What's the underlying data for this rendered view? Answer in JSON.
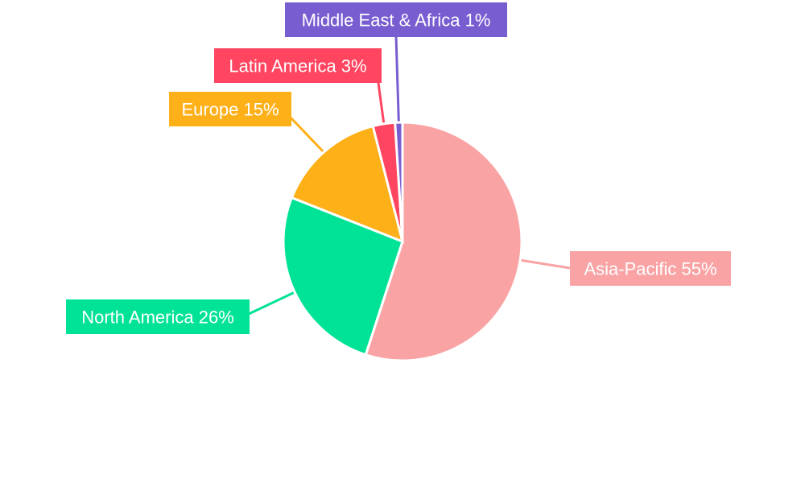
{
  "chart_data": {
    "type": "pie",
    "title": "",
    "categories": [
      "Asia-Pacific",
      "North America",
      "Europe",
      "Latin America",
      "Middle East & Africa"
    ],
    "values": [
      55,
      26,
      15,
      3,
      1
    ],
    "unit": "%",
    "labels": [
      "Asia-Pacific 55%",
      "North America 26%",
      "Europe 15%",
      "Latin America 3%",
      "Middle East & Africa 1%"
    ],
    "colors": [
      "#F9A3A4",
      "#00E396",
      "#FEB019",
      "#FF4560",
      "#775DD0"
    ],
    "start_angle": "top, clockwise",
    "legend": "none"
  }
}
